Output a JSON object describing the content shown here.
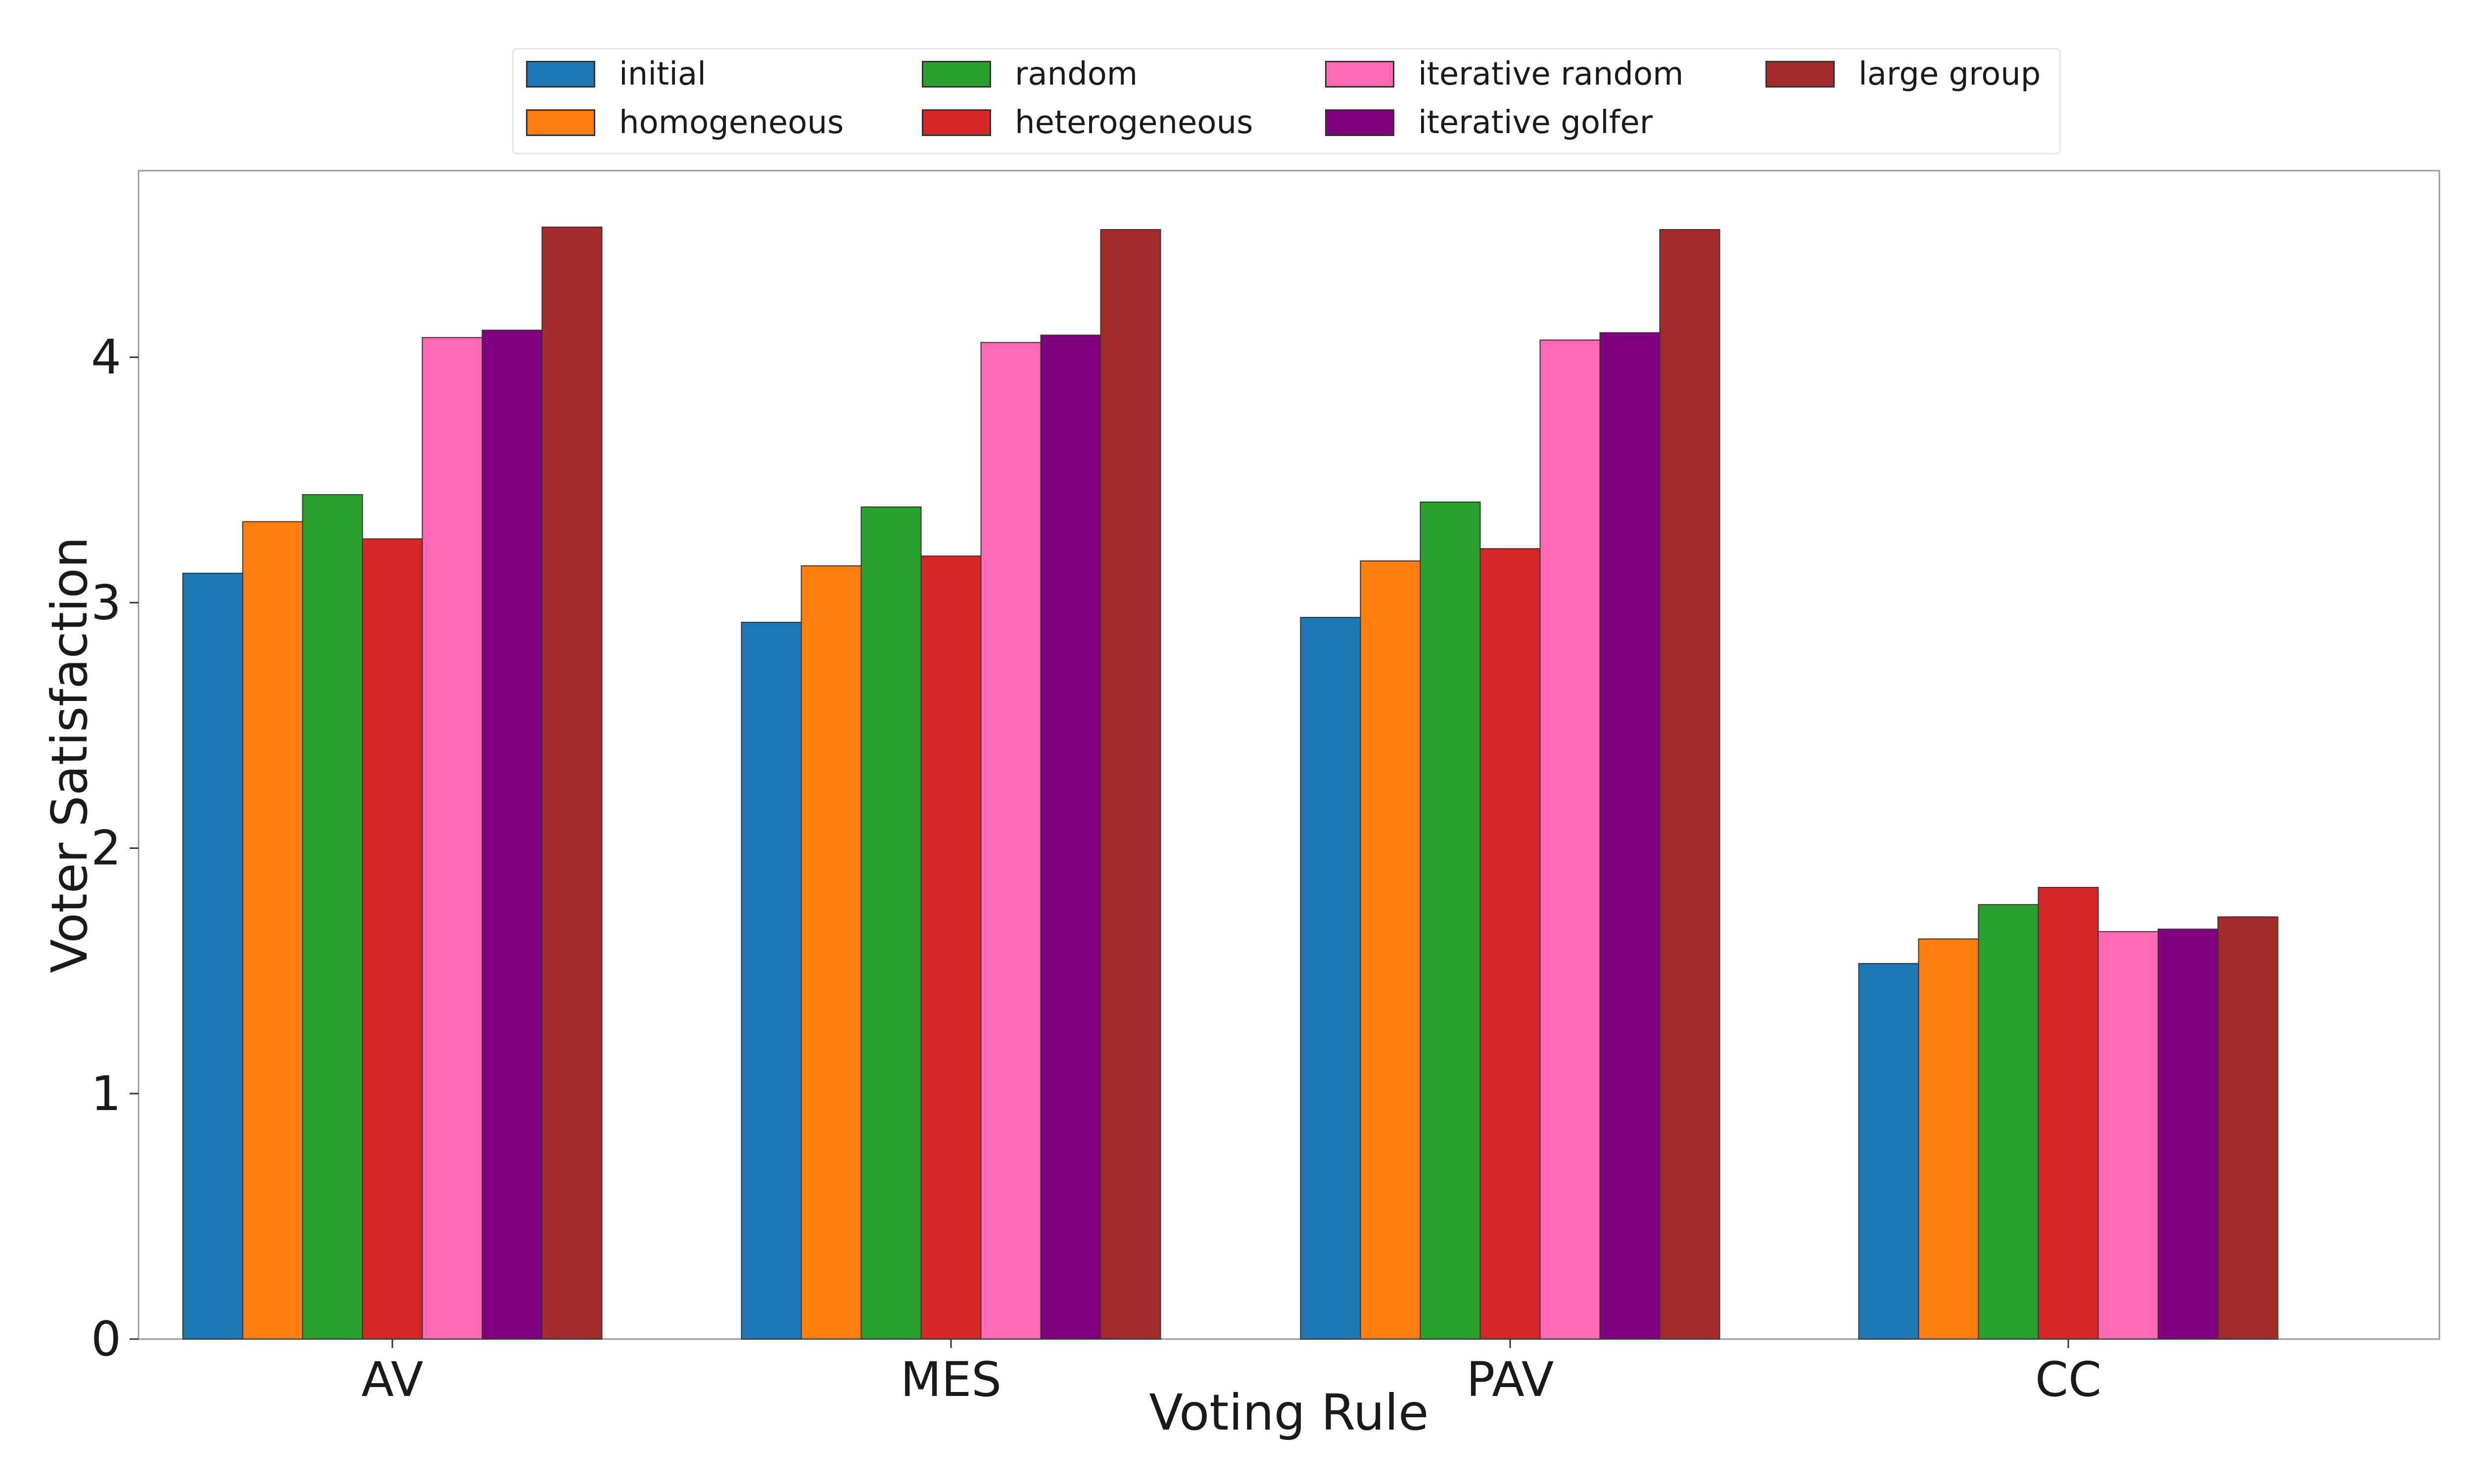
{
  "chart_data": {
    "type": "bar",
    "title": "",
    "xlabel": "Voting Rule",
    "ylabel": "Voter Satisfaction",
    "categories": [
      "AV",
      "MES",
      "PAV",
      "CC"
    ],
    "ylim": [
      0,
      4.76
    ],
    "yticks": [
      "0",
      "1",
      "2",
      "3",
      "4"
    ],
    "grid": false,
    "legend_position": "top-center",
    "series": [
      {
        "name": "initial",
        "color": "#1f77b4",
        "values": [
          3.12,
          2.92,
          2.94,
          1.53
        ]
      },
      {
        "name": "homogeneous",
        "color": "#ff7f0e",
        "values": [
          3.33,
          3.15,
          3.17,
          1.63
        ]
      },
      {
        "name": "random",
        "color": "#2ca02c",
        "values": [
          3.44,
          3.39,
          3.41,
          1.77
        ]
      },
      {
        "name": "heterogeneous",
        "color": "#d62728",
        "values": [
          3.26,
          3.19,
          3.22,
          1.84
        ]
      },
      {
        "name": "iterative random",
        "color": "#ff69b4",
        "values": [
          4.08,
          4.06,
          4.07,
          1.66
        ]
      },
      {
        "name": "iterative golfer",
        "color": "#800080",
        "values": [
          4.11,
          4.09,
          4.1,
          1.67
        ]
      },
      {
        "name": "large group",
        "color": "#a52a2a",
        "values": [
          4.53,
          4.52,
          4.52,
          1.72
        ]
      }
    ]
  }
}
